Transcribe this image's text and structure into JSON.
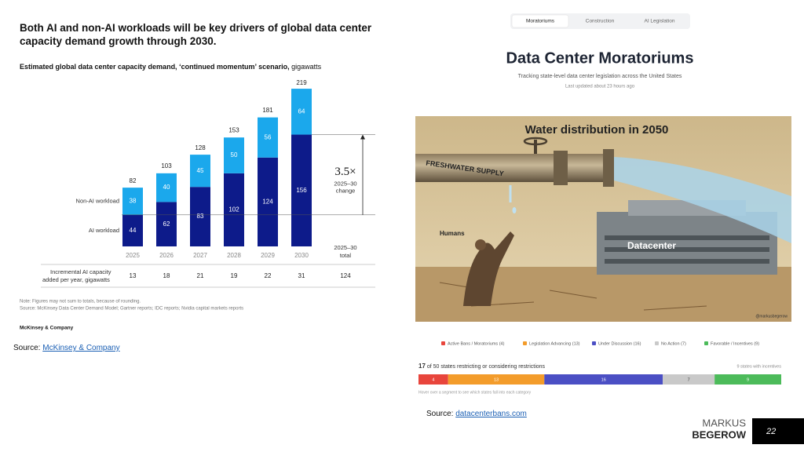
{
  "chart_data": {
    "type": "bar",
    "stacked": true,
    "title": "Both AI and non-AI workloads will be key drivers of global data center capacity demand growth through 2030.",
    "subtitle": "Estimated global data center capacity demand, ‘continued momentum’ scenario,",
    "unit": "gigawatts",
    "categories": [
      "2025",
      "2026",
      "2027",
      "2028",
      "2029",
      "2030"
    ],
    "series": [
      {
        "name": "AI workload",
        "color": "#0d1b8a",
        "values": [
          44,
          62,
          83,
          102,
          124,
          156
        ]
      },
      {
        "name": "Non-AI workload",
        "color": "#1ba8ec",
        "values": [
          38,
          40,
          45,
          50,
          56,
          64
        ]
      }
    ],
    "totals": [
      82,
      103,
      128,
      153,
      181,
      219
    ],
    "annotation": {
      "value": "3.5×",
      "line1": "2025–30",
      "line2": "change"
    },
    "total_header": {
      "line1": "2025–30",
      "line2": "total"
    },
    "row": {
      "label1": "Incremental AI capacity",
      "label2": "added per year, gigawatts",
      "values": [
        13,
        18,
        21,
        19,
        22,
        31
      ],
      "total": 124
    },
    "notes": [
      "Note: Figures may not sum to totals, because of rounding.",
      "Source: McKinsey Data Center Demand Model; Gartner reports; IDC reports; Nvidia capital markets reports"
    ],
    "publisher": "McKinsey & Company"
  },
  "left_source": {
    "label": "Source:",
    "link": "McKinsey & Company"
  },
  "app": {
    "tabs": [
      "Moratoriums",
      "Construction",
      "AI Legislation"
    ],
    "title": "Data Center Moratoriums",
    "subtitle": "Tracking state-level data center legislation across the United States",
    "updated": "Last updated about 23 hours ago",
    "image": {
      "title": "Water distribution in 2050",
      "pipe": "FRESHWATER SUPPLY",
      "humans": "Humans",
      "datacenter": "Datacenter",
      "credit": "@markusbegerow"
    },
    "segments": [
      {
        "name": "Active Bans / Moratoriums (4)",
        "color": "#e8453c",
        "value": 4
      },
      {
        "name": "Legislation Advancing (13)",
        "color": "#f39c2b",
        "value": 13
      },
      {
        "name": "Under Discussion (16)",
        "color": "#4b4fc4",
        "value": 16
      },
      {
        "name": "No Action (7)",
        "color": "#c9c9c9",
        "value": 7
      },
      {
        "name": "Favorable / Incentives (9)",
        "color": "#4cbb5a",
        "value": 9
      }
    ],
    "summary_count": 17,
    "summary_text": "of 50 states restricting or considering restrictions",
    "incentives_text": "9 states with incentives",
    "hint": "Hover over a segment to see which states fall into each category"
  },
  "right_source": {
    "label": "Source:",
    "link": "datacenterbans.com"
  },
  "brand": {
    "line1": "MARKUS",
    "line2": "BEGEROW",
    "page": "22"
  }
}
